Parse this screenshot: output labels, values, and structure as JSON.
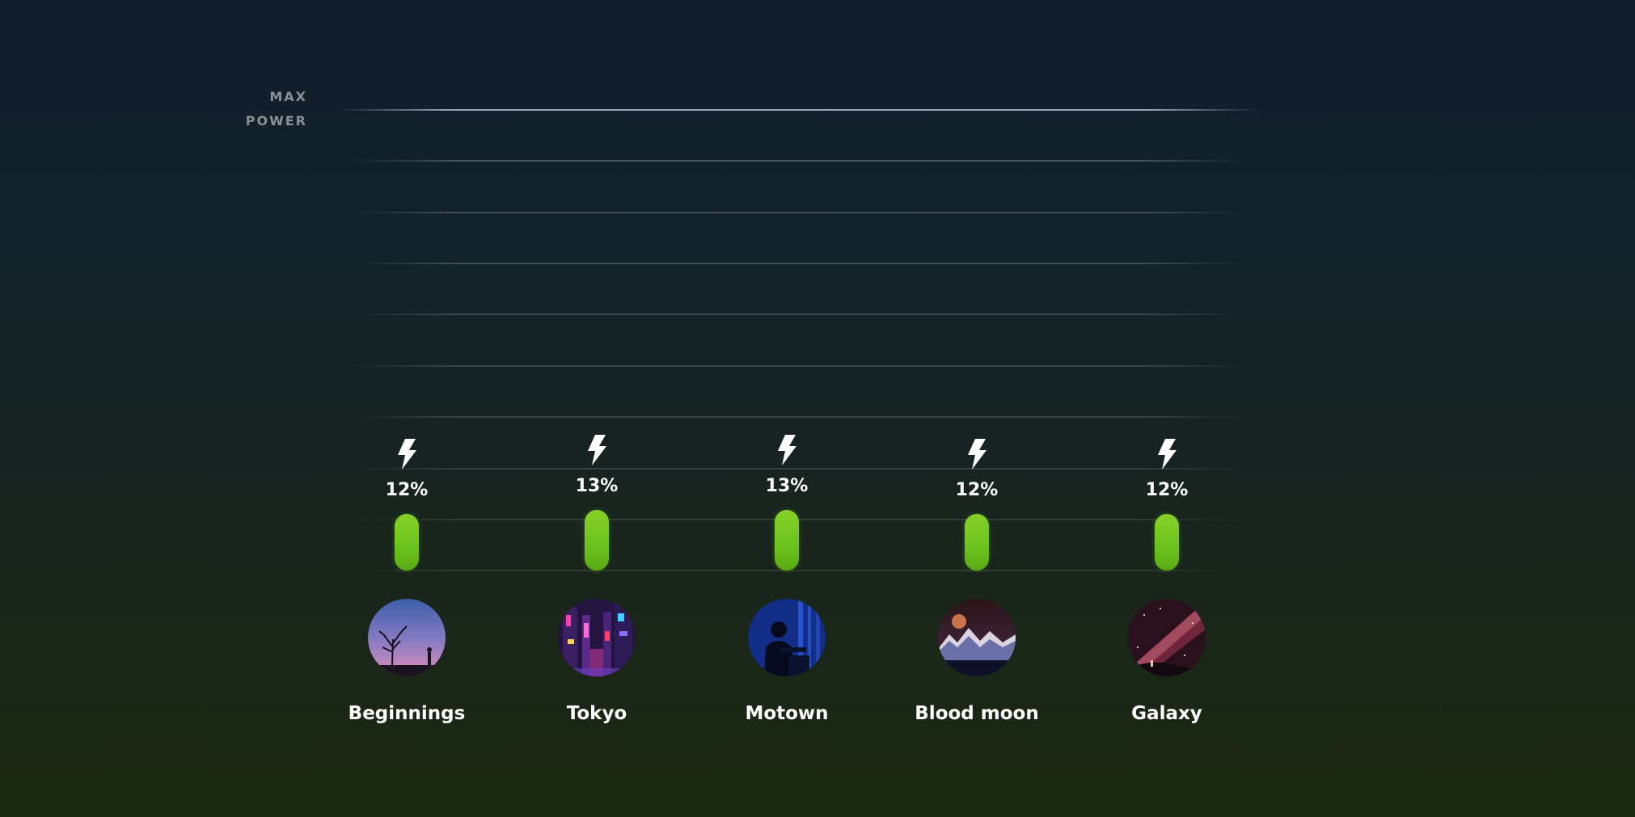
{
  "chart_data": {
    "type": "bar",
    "axis_label_lines": [
      "MAX",
      "POWER"
    ],
    "categories": [
      "Beginnings",
      "Tokyo",
      "Motown",
      "Blood moon",
      "Galaxy"
    ],
    "values": [
      12,
      13,
      13,
      12,
      12
    ],
    "value_labels": [
      "12%",
      "13%",
      "13%",
      "12%",
      "12%"
    ],
    "unit": "%",
    "ylim": [
      0,
      100
    ],
    "grid": true,
    "bar_color": "#6cc21c",
    "icon": "lightning-bolt-icon"
  }
}
